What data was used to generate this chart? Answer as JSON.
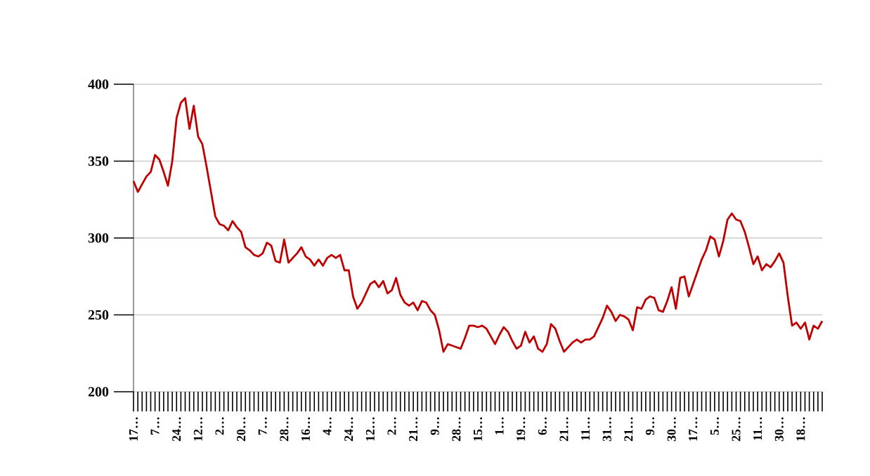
{
  "chart_data": {
    "type": "line",
    "categories": [
      "17…",
      null,
      null,
      null,
      null,
      "7…",
      null,
      null,
      null,
      null,
      "24…",
      null,
      null,
      null,
      null,
      "12…",
      null,
      null,
      null,
      null,
      "2…",
      null,
      null,
      null,
      null,
      "20…",
      null,
      null,
      null,
      null,
      "7…",
      null,
      null,
      null,
      null,
      "28…",
      null,
      null,
      null,
      null,
      "16…",
      null,
      null,
      null,
      null,
      "4…",
      null,
      null,
      null,
      null,
      "24…",
      null,
      null,
      null,
      null,
      "12…",
      null,
      null,
      null,
      null,
      "2…",
      null,
      null,
      null,
      null,
      "21…",
      null,
      null,
      null,
      null,
      "9…",
      null,
      null,
      null,
      null,
      "28…",
      null,
      null,
      null,
      null,
      "15…",
      null,
      null,
      null,
      null,
      "1…",
      null,
      null,
      null,
      null,
      "19…",
      null,
      null,
      null,
      null,
      "6…",
      null,
      null,
      null,
      null,
      "21…",
      null,
      null,
      null,
      null,
      "11…",
      null,
      null,
      null,
      null,
      "31…",
      null,
      null,
      null,
      null,
      "21…",
      null,
      null,
      null,
      null,
      "9…",
      null,
      null,
      null,
      null,
      "30…",
      null,
      null,
      null,
      null,
      "17…",
      null,
      null,
      null,
      null,
      "5…",
      null,
      null,
      null,
      null,
      "25…",
      null,
      null,
      null,
      null,
      "11…",
      null,
      null,
      null,
      null,
      "30…",
      null,
      null,
      null,
      null,
      "18…",
      null,
      null,
      null,
      null,
      null
    ],
    "values": [
      337,
      330,
      335,
      340,
      343,
      354,
      351,
      343,
      334,
      350,
      378,
      388,
      391,
      371,
      386,
      366,
      361,
      346,
      330,
      314,
      309,
      308,
      305,
      311,
      307,
      304,
      294,
      292,
      289,
      288,
      290,
      297,
      295,
      285,
      284,
      299,
      284,
      287,
      290,
      294,
      288,
      286,
      282,
      286,
      282,
      287,
      289,
      287,
      289,
      279,
      279,
      262,
      254,
      258,
      264,
      270,
      272,
      268,
      272,
      264,
      266,
      274,
      263,
      258,
      256,
      258,
      253,
      259,
      258,
      253,
      250,
      240,
      226,
      231,
      230,
      229,
      228,
      235,
      243,
      243,
      242,
      243,
      241,
      236,
      231,
      237,
      242,
      239,
      233,
      228,
      230,
      239,
      232,
      236,
      228,
      226,
      231,
      244,
      241,
      233,
      226,
      229,
      232,
      234,
      232,
      234,
      234,
      236,
      242,
      248,
      256,
      252,
      246,
      250,
      249,
      247,
      240,
      255,
      254,
      260,
      262,
      261,
      253,
      252,
      259,
      268,
      254,
      274,
      275,
      262,
      270,
      278,
      286,
      292,
      301,
      299,
      288,
      298,
      312,
      316,
      312,
      311,
      304,
      294,
      283,
      288,
      279,
      283,
      281,
      285,
      290,
      284,
      262,
      243,
      245,
      241,
      245,
      234,
      243,
      241,
      246
    ],
    "color": "#c00000",
    "ylim": [
      200,
      400
    ],
    "yticks": [
      200,
      250,
      300,
      350,
      400
    ],
    "grid": "y"
  }
}
